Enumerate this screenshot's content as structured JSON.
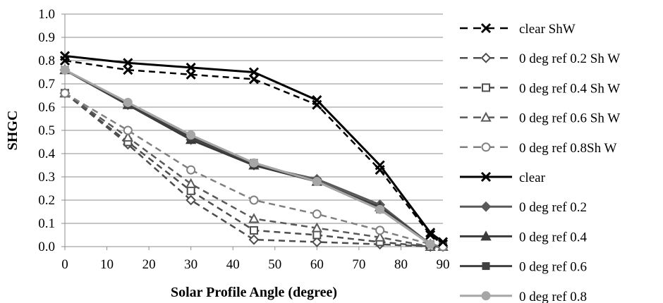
{
  "chart_data": {
    "type": "line",
    "title": "",
    "xlabel": "Solar Profile Angle (degree)",
    "ylabel": "SHGC",
    "xlim": [
      0,
      90
    ],
    "ylim": [
      0,
      1.0
    ],
    "x_ticks": [
      0,
      10,
      20,
      30,
      40,
      50,
      60,
      70,
      80,
      90
    ],
    "x_tick_labels": [
      "0",
      "10",
      "20",
      "30",
      "40",
      "50",
      "60",
      "70",
      "80",
      "90"
    ],
    "y_ticks": [
      0,
      0.1,
      0.2,
      0.3,
      0.4,
      0.5,
      0.6,
      0.7,
      0.8,
      0.9,
      1.0
    ],
    "y_tick_labels": [
      "0.0",
      "0.1",
      "0.2",
      "0.3",
      "0.4",
      "0.5",
      "0.6",
      "0.7",
      "0.8",
      "0.9",
      "1.0"
    ],
    "grid": "horizontal",
    "legend_position": "right",
    "series": [
      {
        "name": "clear ShW",
        "color": "#000000",
        "dashed": true,
        "marker": "x",
        "x": [
          0,
          15,
          30,
          45,
          60,
          75,
          87,
          90
        ],
        "y": [
          0.8,
          0.76,
          0.74,
          0.72,
          0.61,
          0.33,
          0.05,
          0.01
        ]
      },
      {
        "name": "0 deg ref 0.2 Sh W",
        "color": "#4d4d4d",
        "dashed": true,
        "marker": "diamond-open",
        "x": [
          0,
          15,
          30,
          45,
          60,
          75,
          87,
          90
        ],
        "y": [
          0.66,
          0.44,
          0.2,
          0.03,
          0.02,
          0.01,
          0.0,
          0.0
        ]
      },
      {
        "name": "0 deg ref 0.4 Sh W",
        "color": "#4d4d4d",
        "dashed": true,
        "marker": "square-open",
        "x": [
          0,
          15,
          30,
          45,
          60,
          75,
          87,
          90
        ],
        "y": [
          0.66,
          0.45,
          0.24,
          0.07,
          0.05,
          0.02,
          0.0,
          0.0
        ]
      },
      {
        "name": "0 deg ref 0.6 Sh W",
        "color": "#595959",
        "dashed": true,
        "marker": "triangle-open",
        "x": [
          0,
          15,
          30,
          45,
          60,
          75,
          87,
          90
        ],
        "y": [
          0.66,
          0.47,
          0.27,
          0.12,
          0.08,
          0.04,
          0.0,
          0.0
        ]
      },
      {
        "name": "0 deg ref 0.8Sh W",
        "color": "#808080",
        "dashed": true,
        "marker": "circle-open",
        "x": [
          0,
          15,
          30,
          45,
          60,
          75,
          87,
          90
        ],
        "y": [
          0.66,
          0.5,
          0.33,
          0.2,
          0.14,
          0.07,
          0.01,
          0.0
        ]
      },
      {
        "name": "clear",
        "color": "#000000",
        "dashed": false,
        "marker": "x",
        "x": [
          0,
          15,
          30,
          45,
          60,
          75,
          87,
          90
        ],
        "y": [
          0.82,
          0.79,
          0.77,
          0.75,
          0.63,
          0.35,
          0.06,
          0.02
        ]
      },
      {
        "name": "0 deg ref 0.2",
        "color": "#595959",
        "dashed": false,
        "marker": "diamond",
        "x": [
          0,
          15,
          30,
          45,
          60,
          75,
          87
        ],
        "y": [
          0.76,
          0.61,
          0.46,
          0.35,
          0.29,
          0.18,
          0.01
        ]
      },
      {
        "name": "0 deg ref 0.4",
        "color": "#3a3a3a",
        "dashed": false,
        "marker": "triangle",
        "x": [
          0,
          15,
          30,
          45,
          60,
          75,
          87
        ],
        "y": [
          0.76,
          0.61,
          0.46,
          0.35,
          0.28,
          0.17,
          0.01
        ]
      },
      {
        "name": "0 deg ref 0.6",
        "color": "#404040",
        "dashed": false,
        "marker": "square",
        "x": [
          0,
          15,
          30,
          45,
          60,
          75,
          87
        ],
        "y": [
          0.76,
          0.61,
          0.47,
          0.36,
          0.28,
          0.16,
          0.01
        ]
      },
      {
        "name": "0 deg ref 0.8",
        "color": "#a6a6a6",
        "dashed": false,
        "marker": "circle",
        "x": [
          0,
          15,
          30,
          45,
          60,
          75,
          87
        ],
        "y": [
          0.76,
          0.62,
          0.48,
          0.36,
          0.28,
          0.16,
          0.01
        ]
      }
    ]
  }
}
